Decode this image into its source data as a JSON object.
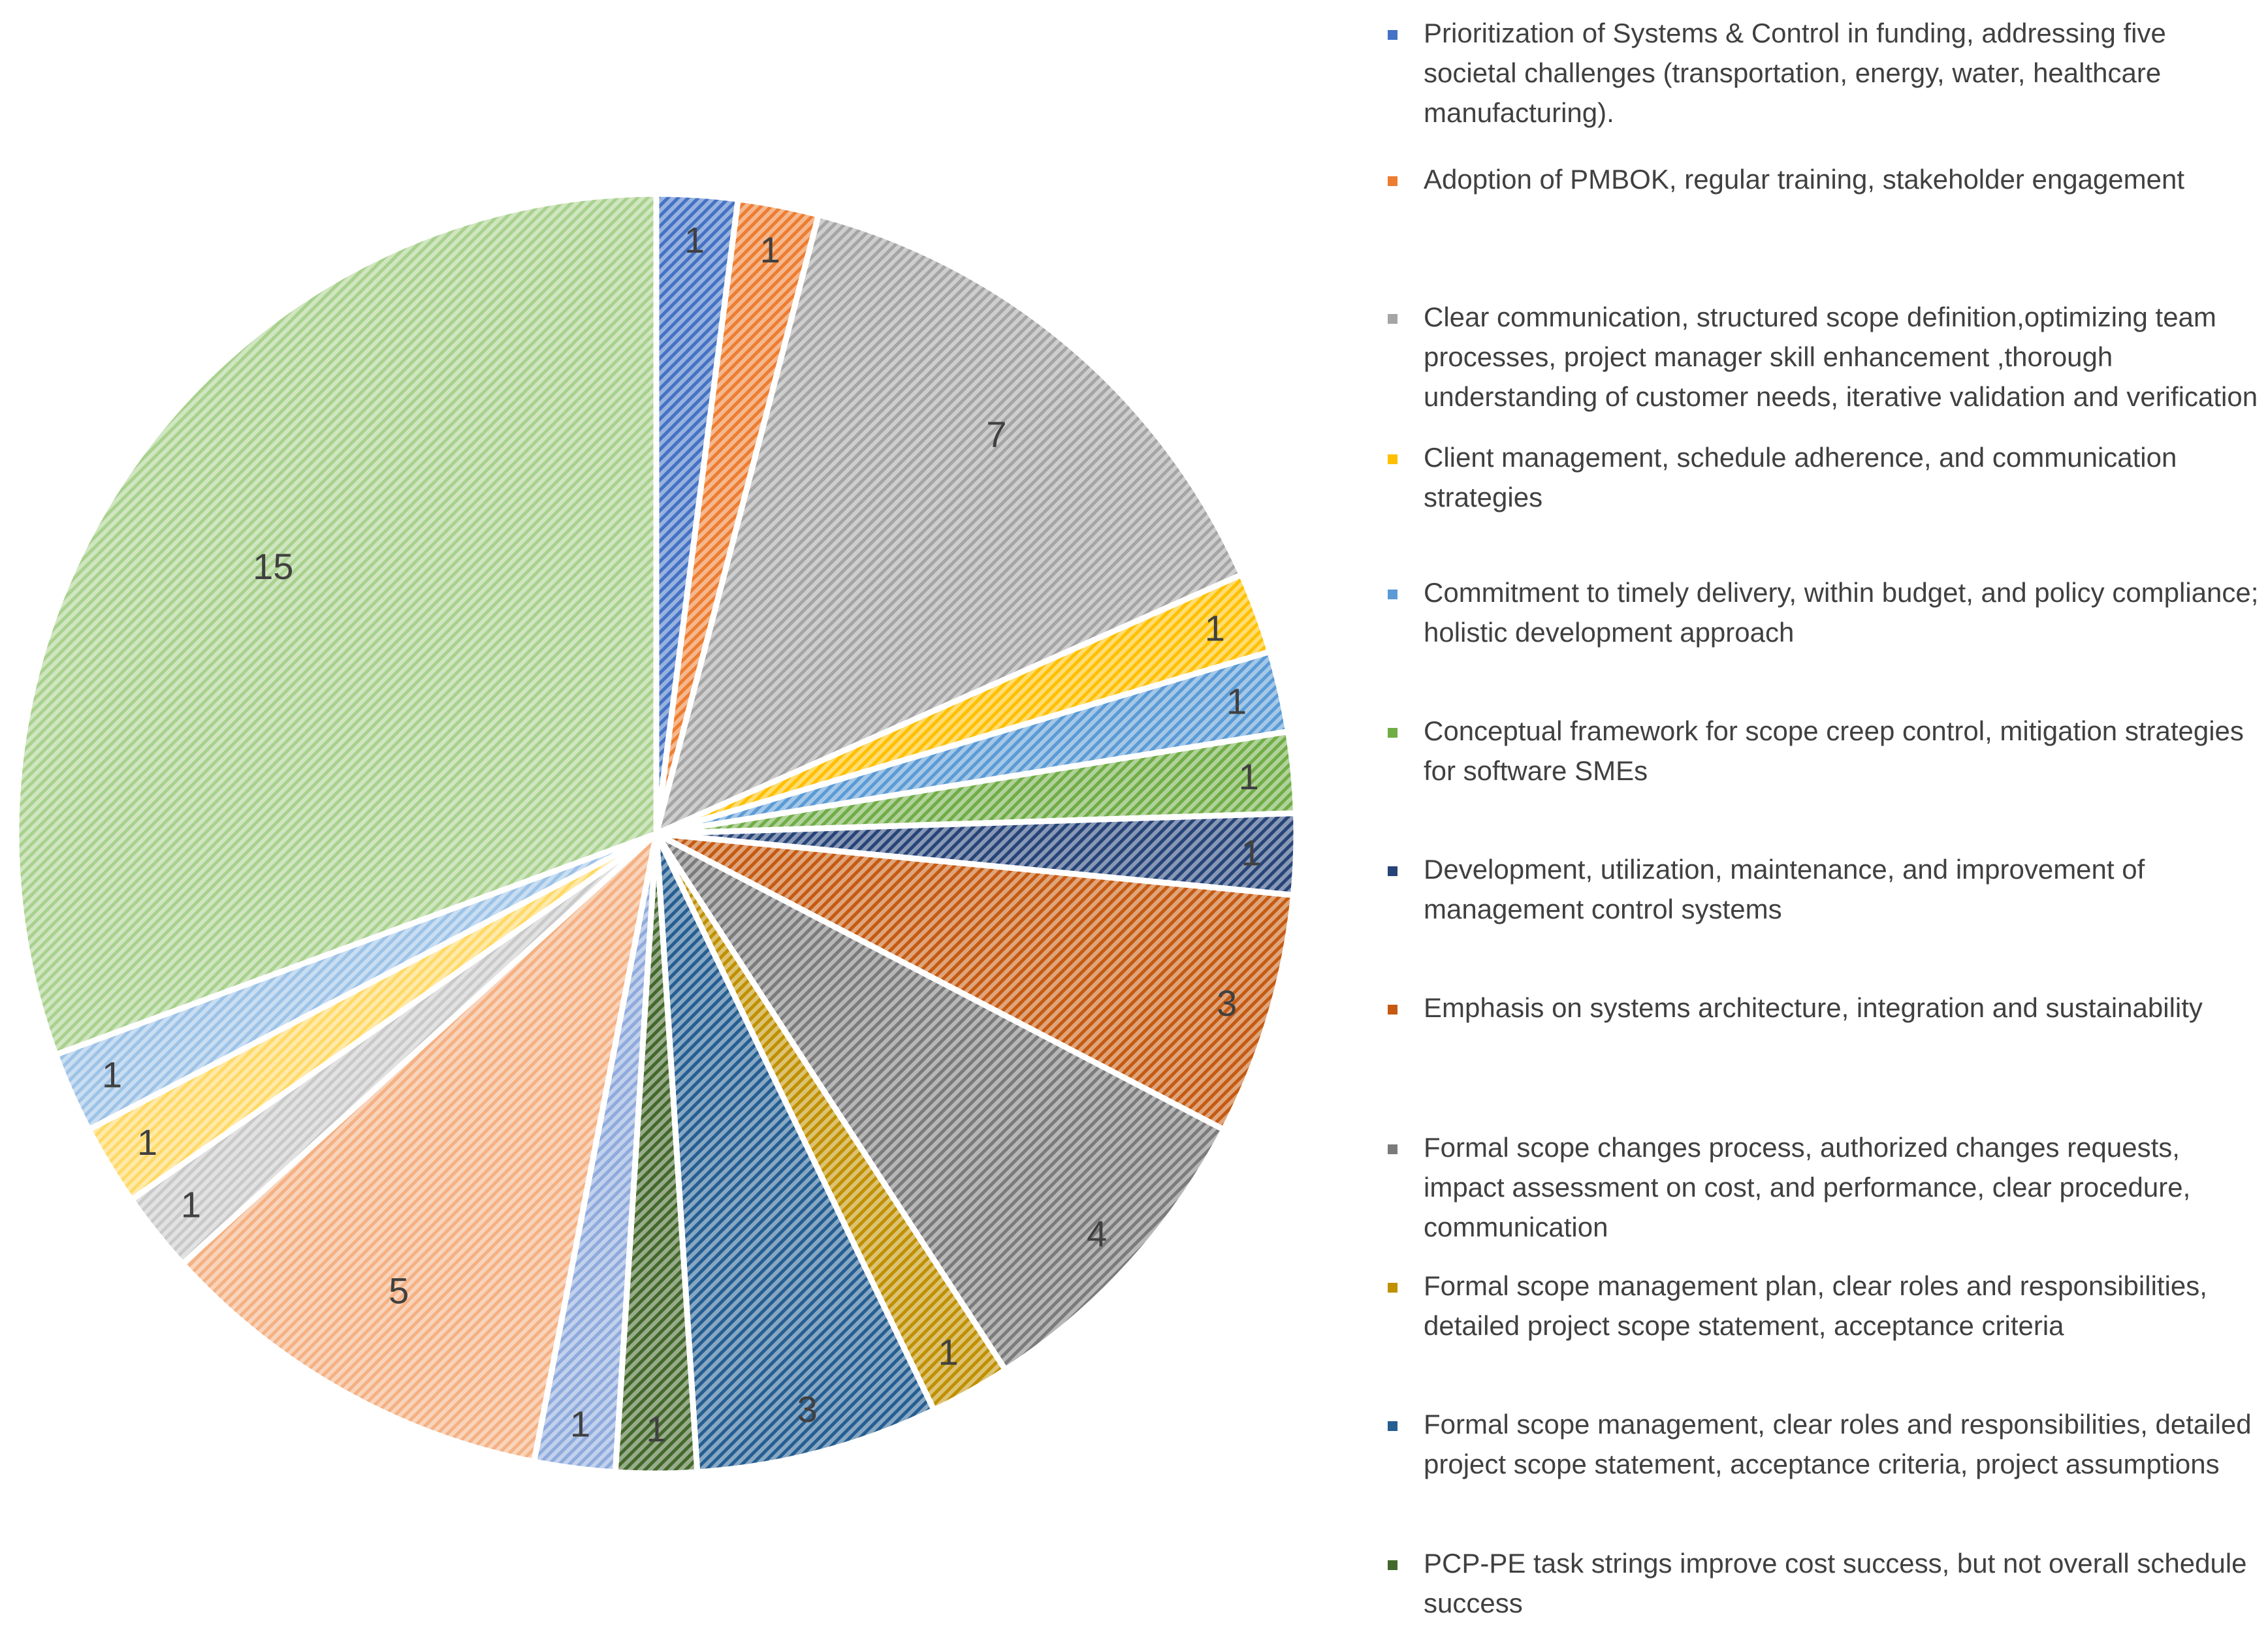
{
  "chart_data": {
    "type": "pie",
    "title": "",
    "categories": [
      " Prioritization of Systems & Control in funding, addressing five societal challenges (transportation, energy, water, healthcare manufacturing).",
      "Adoption of PMBOK, regular training, stakeholder engagement",
      "Clear communication, structured scope definition,optimizing team processes, project manager skill enhancement ,thorough understanding of customer needs, iterative validation and verification",
      "Client management, schedule adherence, and communication strategies",
      "Commitment to timely delivery, within budget, and policy compliance; holistic development approach",
      "Conceptual framework for scope creep control, mitigation strategies for software SMEs",
      "Development, utilization, maintenance, and improvement of management control systems",
      "Emphasis on systems architecture, integration and sustainability",
      "Formal scope changes process, authorized changes requests, impact assessment on cost, and performance, clear procedure, communication",
      "Formal scope management plan, clear roles and responsibilities, detailed project scope statement, acceptance criteria",
      "Formal scope management, clear roles and responsibilities, detailed project scope statement, acceptance criteria, project assumptions",
      "PCP-PE task strings improve cost success, but not overall schedule success",
      "",
      "",
      "",
      "",
      "",
      ""
    ],
    "values": [
      1,
      1,
      7,
      1,
      1,
      1,
      1,
      3,
      4,
      1,
      3,
      1,
      1,
      5,
      1,
      1,
      1,
      15
    ],
    "value_labels": [
      "1",
      "1",
      "7",
      "1",
      "1",
      "1",
      "1",
      "3",
      "4",
      "1",
      "3",
      "1",
      "1",
      "5",
      "1",
      "1",
      "1",
      "15"
    ],
    "colors": [
      "#4472C4",
      "#ED7D31",
      "#A5A5A5",
      "#FFC000",
      "#5B9BD5",
      "#70AD47",
      "#264478",
      "#C55A11",
      "#7B7B7B",
      "#BF9000",
      "#255E91",
      "#43682B",
      "#8FAADC",
      "#F4B183",
      "#C9C9C9",
      "#FFD966",
      "#9DC3E6",
      "#A9D18E"
    ],
    "legend_markers": [
      " Prioritization of Systems & Control in funding, addressing five societal challenges (transportation, energy, water, healthcare manufacturing).",
      "Adoption of PMBOK, regular training, stakeholder engagement",
      "Clear communication, structured scope definition,optimizing team processes, project manager skill enhancement ,thorough understanding of customer needs, iterative validation and verification",
      "Client management, schedule adherence, and communication strategies",
      "Commitment to timely delivery, within budget, and policy compliance; holistic development approach",
      "Conceptual framework for scope creep control, mitigation strategies for software SMEs",
      "Development, utilization, maintenance, and improvement of management control systems",
      "Emphasis on systems architecture, integration and sustainability",
      "Formal scope changes process, authorized changes requests, impact assessment on cost, and performance, clear procedure, communication",
      "Formal scope management plan, clear roles and responsibilities, detailed project scope statement, acceptance criteria",
      "Formal scope management, clear roles and responsibilities, detailed project scope statement, acceptance criteria, project assumptions",
      "PCP-PE task strings improve cost success, but not overall schedule success"
    ],
    "legend_position": "right",
    "start_angle_deg": 0,
    "direction": "clockwise",
    "pattern": "diagonal-hatch"
  }
}
